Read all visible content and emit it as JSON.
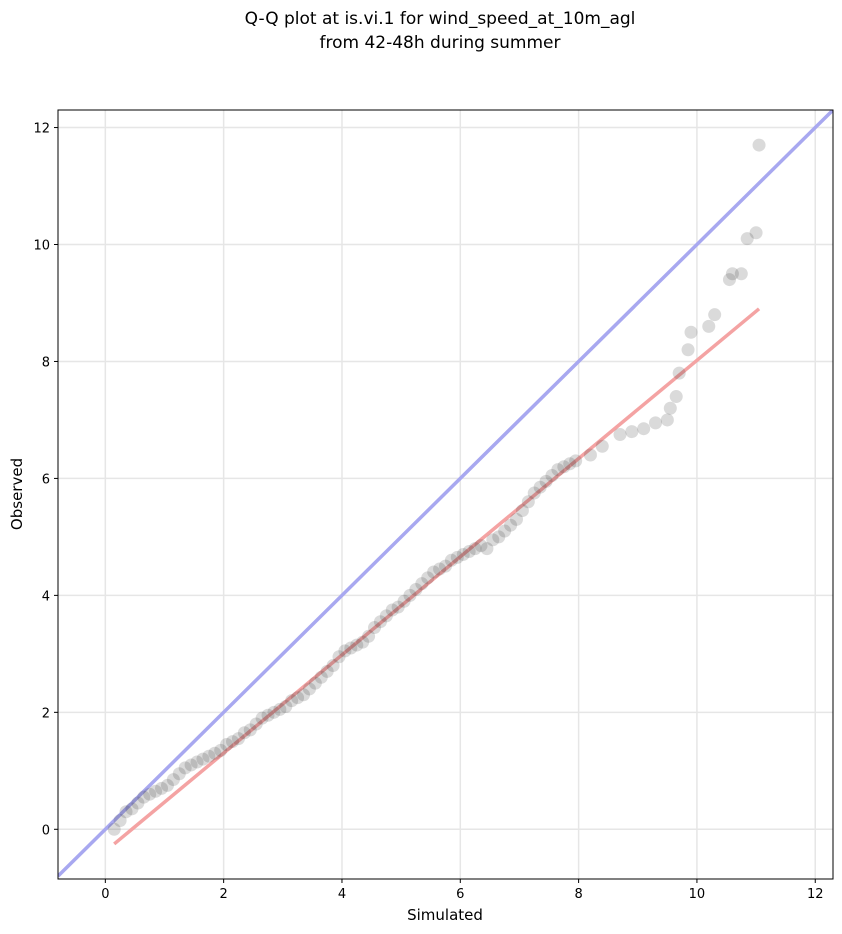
{
  "chart_data": {
    "type": "scatter",
    "title_lines": [
      "Q-Q plot at is.vi.1 for wind_speed_at_10m_agl",
      "from 42-48h during summer"
    ],
    "xlabel": "Simulated",
    "ylabel": "Observed",
    "xlim": [
      -0.8,
      12.3
    ],
    "ylim": [
      -0.85,
      12.3
    ],
    "x_ticks": [
      0,
      2,
      4,
      6,
      8,
      10,
      12
    ],
    "y_ticks": [
      0,
      2,
      4,
      6,
      8,
      10,
      12
    ],
    "grid": true,
    "colors": {
      "points": "#333333",
      "identity_line": "#a8a8f0",
      "fit_line": "#f4a3a3"
    },
    "identity_line": {
      "x": [
        -0.8,
        12.3
      ],
      "y": [
        -0.8,
        12.3
      ]
    },
    "fit_line": {
      "x": [
        0.15,
        11.05
      ],
      "y": [
        -0.25,
        8.9
      ]
    },
    "points": {
      "x": [
        0.15,
        0.25,
        0.35,
        0.45,
        0.55,
        0.65,
        0.75,
        0.85,
        0.95,
        1.05,
        1.15,
        1.25,
        1.35,
        1.45,
        1.55,
        1.65,
        1.75,
        1.85,
        1.95,
        2.05,
        2.15,
        2.25,
        2.35,
        2.45,
        2.55,
        2.65,
        2.75,
        2.85,
        2.95,
        3.05,
        3.15,
        3.25,
        3.35,
        3.45,
        3.55,
        3.65,
        3.75,
        3.85,
        3.95,
        4.05,
        4.15,
        4.25,
        4.35,
        4.45,
        4.55,
        4.65,
        4.75,
        4.85,
        4.95,
        5.05,
        5.15,
        5.25,
        5.35,
        5.45,
        5.55,
        5.65,
        5.75,
        5.85,
        5.95,
        6.05,
        6.15,
        6.25,
        6.35,
        6.45,
        6.55,
        6.65,
        6.75,
        6.85,
        6.95,
        7.05,
        7.15,
        7.25,
        7.35,
        7.45,
        7.55,
        7.65,
        7.75,
        7.85,
        7.95,
        8.2,
        8.4,
        8.7,
        8.9,
        9.1,
        9.3,
        9.5,
        9.55,
        9.65,
        9.7,
        9.85,
        9.9,
        10.2,
        10.3,
        10.55,
        10.6,
        10.75,
        10.85,
        11.0,
        11.05
      ],
      "y": [
        0.0,
        0.15,
        0.3,
        0.35,
        0.45,
        0.55,
        0.6,
        0.65,
        0.7,
        0.75,
        0.85,
        0.95,
        1.05,
        1.1,
        1.15,
        1.2,
        1.25,
        1.3,
        1.35,
        1.45,
        1.5,
        1.55,
        1.65,
        1.7,
        1.8,
        1.9,
        1.95,
        2.0,
        2.05,
        2.1,
        2.2,
        2.25,
        2.3,
        2.4,
        2.5,
        2.6,
        2.7,
        2.8,
        2.95,
        3.05,
        3.1,
        3.15,
        3.2,
        3.3,
        3.45,
        3.55,
        3.65,
        3.75,
        3.8,
        3.9,
        4.0,
        4.1,
        4.2,
        4.3,
        4.4,
        4.45,
        4.5,
        4.6,
        4.65,
        4.7,
        4.75,
        4.8,
        4.85,
        4.8,
        4.95,
        5.0,
        5.1,
        5.2,
        5.3,
        5.45,
        5.6,
        5.75,
        5.85,
        5.95,
        6.05,
        6.15,
        6.2,
        6.25,
        6.3,
        6.4,
        6.55,
        6.75,
        6.8,
        6.85,
        6.95,
        7.0,
        7.2,
        7.4,
        7.8,
        8.2,
        8.5,
        8.6,
        8.8,
        9.4,
        9.5,
        9.5,
        10.1,
        10.2,
        11.7
      ]
    }
  }
}
